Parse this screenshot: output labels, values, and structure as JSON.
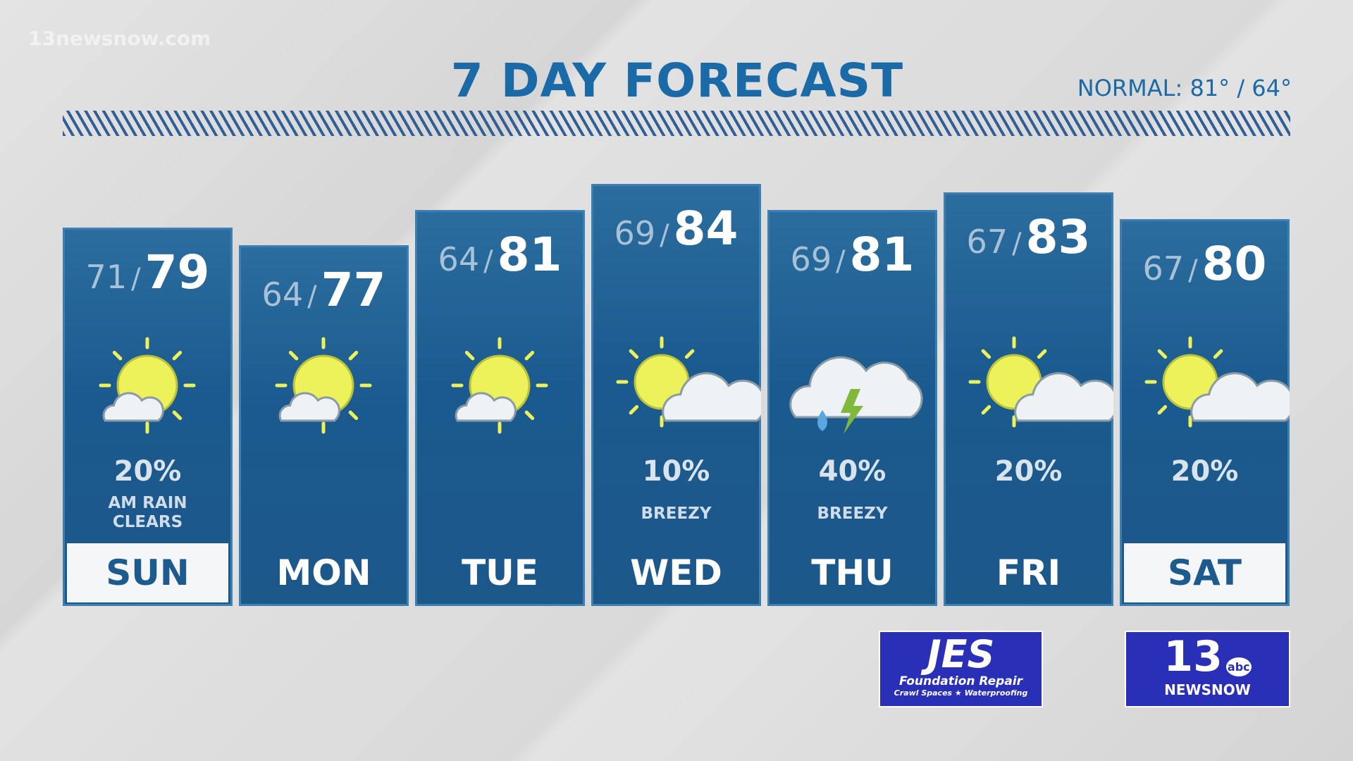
{
  "watermark": "13newsnow.com",
  "header": {
    "title": "7 DAY FORECAST",
    "normal": "NORMAL: 81° / 64°"
  },
  "days": [
    {
      "day": "SUN",
      "low": 71,
      "high": 79,
      "icon": "sun-small-cloud",
      "precip": "20%",
      "note": [
        "AM RAIN",
        "CLEARS"
      ]
    },
    {
      "day": "MON",
      "low": 64,
      "high": 77,
      "icon": "sun-small-cloud"
    },
    {
      "day": "TUE",
      "low": 64,
      "high": 81,
      "icon": "sun-small-cloud"
    },
    {
      "day": "WED",
      "low": 69,
      "high": 84,
      "icon": "sun-cloud",
      "precip": "10%",
      "note": [
        "BREEZY"
      ]
    },
    {
      "day": "THU",
      "low": 69,
      "high": 81,
      "icon": "storm",
      "precip": "40%",
      "note": [
        "BREEZY"
      ]
    },
    {
      "day": "FRI",
      "low": 67,
      "high": 83,
      "icon": "sun-cloud",
      "precip": "20%"
    },
    {
      "day": "SAT",
      "low": 67,
      "high": 80,
      "icon": "sun-cloud",
      "precip": "20%"
    }
  ],
  "sponsor": {
    "name": "JES",
    "line1": "Foundation Repair",
    "line2": "Crawl Spaces ★ Waterproofing"
  },
  "station": {
    "number": "13",
    "network": "abc",
    "name": "NEWSNOW"
  }
}
